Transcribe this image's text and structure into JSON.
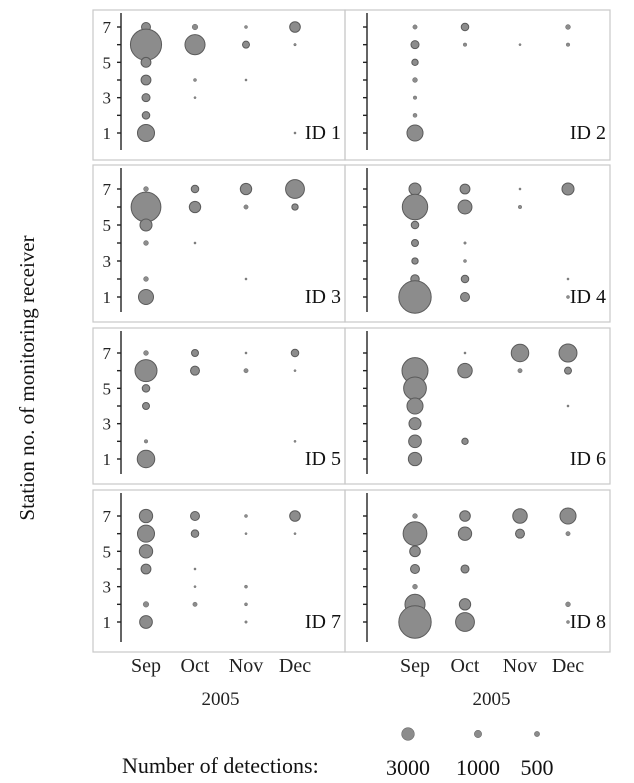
{
  "chart_data": {
    "type": "scatter",
    "ylabel": "Station no. of monitoring receiver",
    "categories": [
      "Sep",
      "Oct",
      "Nov",
      "Dec"
    ],
    "year": "2005",
    "yticks": [
      1,
      3,
      5,
      7
    ],
    "ylim": [
      0,
      8
    ],
    "size_encoding": "Number of detections",
    "point_color": "#8c8c8c",
    "legend": {
      "title": "Number of detections:",
      "entries": [
        {
          "label": "3000",
          "value": 3000
        },
        {
          "label": "1000",
          "value": 1000
        },
        {
          "label": "500",
          "value": 500
        }
      ]
    },
    "panels": [
      {
        "id": "ID 1",
        "points": [
          {
            "x": "Sep",
            "y": 7,
            "n": 500
          },
          {
            "x": "Sep",
            "y": 6,
            "n": 6000
          },
          {
            "x": "Sep",
            "y": 5,
            "n": 600
          },
          {
            "x": "Sep",
            "y": 4,
            "n": 600
          },
          {
            "x": "Sep",
            "y": 3,
            "n": 400
          },
          {
            "x": "Sep",
            "y": 2,
            "n": 350
          },
          {
            "x": "Sep",
            "y": 1,
            "n": 1800
          },
          {
            "x": "Oct",
            "y": 7,
            "n": 200
          },
          {
            "x": "Oct",
            "y": 6,
            "n": 2500
          },
          {
            "x": "Oct",
            "y": 4,
            "n": 60
          },
          {
            "x": "Oct",
            "y": 3,
            "n": 25
          },
          {
            "x": "Nov",
            "y": 7,
            "n": 60
          },
          {
            "x": "Nov",
            "y": 6,
            "n": 300
          },
          {
            "x": "Nov",
            "y": 4,
            "n": 10
          },
          {
            "x": "Dec",
            "y": 7,
            "n": 700
          },
          {
            "x": "Dec",
            "y": 6,
            "n": 40
          },
          {
            "x": "Dec",
            "y": 1,
            "n": 10
          }
        ]
      },
      {
        "id": "ID 2",
        "points": [
          {
            "x": "Sep",
            "y": 7,
            "n": 120
          },
          {
            "x": "Sep",
            "y": 6,
            "n": 400
          },
          {
            "x": "Sep",
            "y": 5,
            "n": 250
          },
          {
            "x": "Sep",
            "y": 4,
            "n": 150
          },
          {
            "x": "Sep",
            "y": 3,
            "n": 80
          },
          {
            "x": "Sep",
            "y": 2,
            "n": 100
          },
          {
            "x": "Sep",
            "y": 1,
            "n": 1600
          },
          {
            "x": "Oct",
            "y": 7,
            "n": 350
          },
          {
            "x": "Oct",
            "y": 6,
            "n": 80
          },
          {
            "x": "Nov",
            "y": 6,
            "n": 15
          },
          {
            "x": "Dec",
            "y": 7,
            "n": 150
          },
          {
            "x": "Dec",
            "y": 6,
            "n": 80
          }
        ]
      },
      {
        "id": "ID 3",
        "points": [
          {
            "x": "Sep",
            "y": 7,
            "n": 150
          },
          {
            "x": "Sep",
            "y": 6,
            "n": 5500
          },
          {
            "x": "Sep",
            "y": 5,
            "n": 900
          },
          {
            "x": "Sep",
            "y": 4,
            "n": 150
          },
          {
            "x": "Sep",
            "y": 2,
            "n": 150
          },
          {
            "x": "Sep",
            "y": 1,
            "n": 1400
          },
          {
            "x": "Oct",
            "y": 7,
            "n": 350
          },
          {
            "x": "Oct",
            "y": 6,
            "n": 800
          },
          {
            "x": "Oct",
            "y": 4,
            "n": 10
          },
          {
            "x": "Nov",
            "y": 7,
            "n": 800
          },
          {
            "x": "Nov",
            "y": 6,
            "n": 120
          },
          {
            "x": "Nov",
            "y": 2,
            "n": 15
          },
          {
            "x": "Dec",
            "y": 7,
            "n": 2200
          },
          {
            "x": "Dec",
            "y": 6,
            "n": 250
          }
        ]
      },
      {
        "id": "ID 4",
        "points": [
          {
            "x": "Sep",
            "y": 7,
            "n": 900
          },
          {
            "x": "Sep",
            "y": 6,
            "n": 4000
          },
          {
            "x": "Sep",
            "y": 5,
            "n": 350
          },
          {
            "x": "Sep",
            "y": 4,
            "n": 300
          },
          {
            "x": "Sep",
            "y": 3,
            "n": 250
          },
          {
            "x": "Sep",
            "y": 2,
            "n": 450
          },
          {
            "x": "Sep",
            "y": 1,
            "n": 6500
          },
          {
            "x": "Oct",
            "y": 7,
            "n": 600
          },
          {
            "x": "Oct",
            "y": 6,
            "n": 1200
          },
          {
            "x": "Oct",
            "y": 4,
            "n": 40
          },
          {
            "x": "Oct",
            "y": 3,
            "n": 60
          },
          {
            "x": "Oct",
            "y": 2,
            "n": 350
          },
          {
            "x": "Oct",
            "y": 1,
            "n": 500
          },
          {
            "x": "Nov",
            "y": 7,
            "n": 10
          },
          {
            "x": "Nov",
            "y": 6,
            "n": 80
          },
          {
            "x": "Dec",
            "y": 7,
            "n": 900
          },
          {
            "x": "Dec",
            "y": 2,
            "n": 25
          },
          {
            "x": "Dec",
            "y": 1,
            "n": 60
          }
        ]
      },
      {
        "id": "ID 5",
        "points": [
          {
            "x": "Sep",
            "y": 7,
            "n": 150
          },
          {
            "x": "Sep",
            "y": 6,
            "n": 3000
          },
          {
            "x": "Sep",
            "y": 5,
            "n": 350
          },
          {
            "x": "Sep",
            "y": 4,
            "n": 300
          },
          {
            "x": "Sep",
            "y": 2,
            "n": 80
          },
          {
            "x": "Sep",
            "y": 1,
            "n": 1900
          },
          {
            "x": "Oct",
            "y": 7,
            "n": 300
          },
          {
            "x": "Oct",
            "y": 6,
            "n": 500
          },
          {
            "x": "Nov",
            "y": 7,
            "n": 25
          },
          {
            "x": "Nov",
            "y": 6,
            "n": 120
          },
          {
            "x": "Dec",
            "y": 7,
            "n": 350
          },
          {
            "x": "Dec",
            "y": 6,
            "n": 25
          },
          {
            "x": "Dec",
            "y": 2,
            "n": 15
          }
        ]
      },
      {
        "id": "ID 6",
        "points": [
          {
            "x": "Sep",
            "y": 6,
            "n": 4200
          },
          {
            "x": "Sep",
            "y": 5,
            "n": 3200
          },
          {
            "x": "Sep",
            "y": 4,
            "n": 1600
          },
          {
            "x": "Sep",
            "y": 3,
            "n": 900
          },
          {
            "x": "Sep",
            "y": 2,
            "n": 1000
          },
          {
            "x": "Sep",
            "y": 1,
            "n": 1100
          },
          {
            "x": "Oct",
            "y": 7,
            "n": 10
          },
          {
            "x": "Oct",
            "y": 6,
            "n": 1300
          },
          {
            "x": "Oct",
            "y": 2,
            "n": 250
          },
          {
            "x": "Nov",
            "y": 7,
            "n": 1900
          },
          {
            "x": "Nov",
            "y": 6,
            "n": 120
          },
          {
            "x": "Dec",
            "y": 7,
            "n": 2000
          },
          {
            "x": "Dec",
            "y": 6,
            "n": 300
          },
          {
            "x": "Dec",
            "y": 4,
            "n": 10
          }
        ]
      },
      {
        "id": "ID 7",
        "points": [
          {
            "x": "Sep",
            "y": 7,
            "n": 1100
          },
          {
            "x": "Sep",
            "y": 6,
            "n": 1800
          },
          {
            "x": "Sep",
            "y": 5,
            "n": 1100
          },
          {
            "x": "Sep",
            "y": 4,
            "n": 600
          },
          {
            "x": "Sep",
            "y": 2,
            "n": 200
          },
          {
            "x": "Sep",
            "y": 1,
            "n": 1000
          },
          {
            "x": "Oct",
            "y": 7,
            "n": 500
          },
          {
            "x": "Oct",
            "y": 6,
            "n": 350
          },
          {
            "x": "Oct",
            "y": 4,
            "n": 20
          },
          {
            "x": "Oct",
            "y": 3,
            "n": 30
          },
          {
            "x": "Oct",
            "y": 2,
            "n": 120
          },
          {
            "x": "Nov",
            "y": 7,
            "n": 60
          },
          {
            "x": "Nov",
            "y": 6,
            "n": 15
          },
          {
            "x": "Nov",
            "y": 3,
            "n": 60
          },
          {
            "x": "Nov",
            "y": 2,
            "n": 60
          },
          {
            "x": "Nov",
            "y": 1,
            "n": 40
          },
          {
            "x": "Dec",
            "y": 7,
            "n": 700
          },
          {
            "x": "Dec",
            "y": 6,
            "n": 10
          }
        ]
      },
      {
        "id": "ID 8",
        "points": [
          {
            "x": "Sep",
            "y": 7,
            "n": 150
          },
          {
            "x": "Sep",
            "y": 6,
            "n": 3500
          },
          {
            "x": "Sep",
            "y": 5,
            "n": 700
          },
          {
            "x": "Sep",
            "y": 4,
            "n": 500
          },
          {
            "x": "Sep",
            "y": 3,
            "n": 150
          },
          {
            "x": "Sep",
            "y": 2,
            "n": 2500
          },
          {
            "x": "Sep",
            "y": 1,
            "n": 6500
          },
          {
            "x": "Oct",
            "y": 7,
            "n": 700
          },
          {
            "x": "Oct",
            "y": 6,
            "n": 1100
          },
          {
            "x": "Oct",
            "y": 4,
            "n": 400
          },
          {
            "x": "Oct",
            "y": 2,
            "n": 800
          },
          {
            "x": "Oct",
            "y": 1,
            "n": 2200
          },
          {
            "x": "Nov",
            "y": 7,
            "n": 1300
          },
          {
            "x": "Nov",
            "y": 6,
            "n": 500
          },
          {
            "x": "Dec",
            "y": 7,
            "n": 1600
          },
          {
            "x": "Dec",
            "y": 6,
            "n": 120
          },
          {
            "x": "Dec",
            "y": 2,
            "n": 150
          },
          {
            "x": "Dec",
            "y": 1,
            "n": 60
          }
        ]
      }
    ]
  }
}
